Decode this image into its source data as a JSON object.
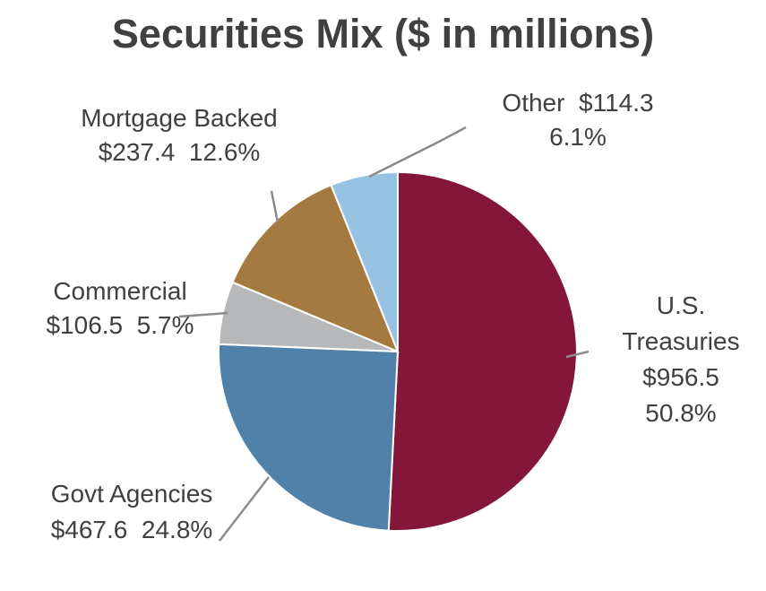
{
  "chart_data": {
    "type": "pie",
    "title": "Securities Mix ($ in millions)",
    "slices": [
      {
        "name": "U.S. Treasuries",
        "value": 956.5,
        "percent": 50.8,
        "color": "#84163A",
        "label_lines": [
          "U.S.",
          "Treasuries",
          "$956.5",
          "50.8%"
        ]
      },
      {
        "name": "Govt Agencies",
        "value": 467.6,
        "percent": 24.8,
        "color": "#5081A8",
        "label_lines": [
          "Govt Agencies",
          "$467.6  24.8%"
        ]
      },
      {
        "name": "Commercial",
        "value": 106.5,
        "percent": 5.7,
        "color": "#B7B8BA",
        "label_lines": [
          "Commercial",
          "$106.5  5.7%"
        ]
      },
      {
        "name": "Mortgage Backed",
        "value": 237.4,
        "percent": 12.6,
        "color": "#A47A41",
        "label_lines": [
          "Mortgage Backed",
          "$237.4  12.6%"
        ]
      },
      {
        "name": "Other",
        "value": 114.3,
        "percent": 6.1,
        "color": "#97C3E2",
        "label_lines": [
          "Other  $114.3",
          "6.1%"
        ]
      }
    ]
  },
  "colors": {
    "leader_line": "#8C8C8C",
    "slice_border": "#ffffff",
    "text": "#404040"
  }
}
